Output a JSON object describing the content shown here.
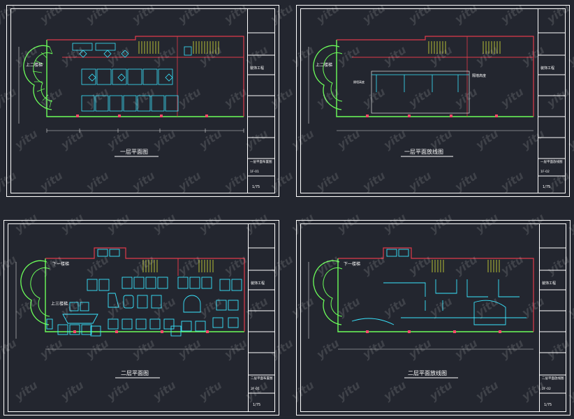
{
  "sheets": [
    {
      "title": "一层平面图",
      "block": {
        "company": "装饰工程",
        "drawing_name": "一层平面布置图",
        "number": "1F-01",
        "scale": "1/75"
      },
      "labels": {
        "stair": "上二楼梯"
      }
    },
    {
      "title": "一层平面放线图",
      "block": {
        "company": "装饰工程",
        "drawing_name": "一层平面放线图",
        "number": "1F-02",
        "scale": "1/75"
      },
      "labels": {
        "stair": "上二楼梯",
        "note": "隔墙高度",
        "annotation": "隔墙高度"
      }
    },
    {
      "title": "二层平面图",
      "block": {
        "company": "装饰工程",
        "drawing_name": "二层平面布置图",
        "number": "2F-01",
        "scale": "1/75"
      },
      "labels": {
        "stair": "下一楼梯",
        "stair2": "上三楼梯"
      }
    },
    {
      "title": "二层平面放线图",
      "block": {
        "company": "装饰工程",
        "drawing_name": "二层平面放线图",
        "number": "2F-02",
        "scale": "1/75"
      },
      "labels": {
        "stair": "下一楼梯"
      }
    }
  ],
  "watermark": "yitu",
  "colors": {
    "background": "#23262f",
    "frame": "#ffffff",
    "wall": "#e03a4a",
    "furniture": "#39e6ff",
    "stair": "#6cff5a",
    "stair_yellow": "#f4ff3a",
    "dim": "#d9d9d9",
    "column": "#ff4a6a"
  }
}
